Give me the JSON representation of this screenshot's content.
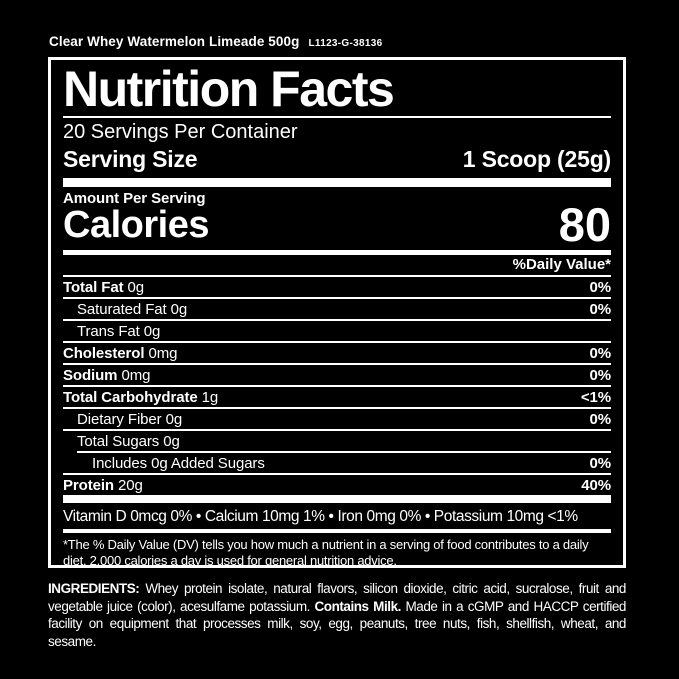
{
  "colors": {
    "background": "#000000",
    "text": "#ffffff"
  },
  "header": {
    "product": "Clear Whey Watermelon Limeade 500g",
    "lot_code": "L1123-G-38136"
  },
  "label": {
    "title": "Nutrition Facts",
    "servings_per_container": "20 Servings Per Container",
    "serving_size_label": "Serving Size",
    "serving_size_value": "1 Scoop (25g)",
    "amount_per_serving": "Amount Per Serving",
    "calories_label": "Calories",
    "calories_value": "80",
    "daily_value_header": "%Daily Value*",
    "rows": [
      {
        "label": "Total Fat",
        "amount": "0g",
        "value": "0%",
        "bold": true,
        "indent": 0
      },
      {
        "label": "Saturated Fat",
        "amount": "0g",
        "value": "0%",
        "bold": false,
        "indent": 1
      },
      {
        "label": "Trans Fat",
        "amount": "0g",
        "value": "",
        "bold": false,
        "indent": 1
      },
      {
        "label": "Cholesterol",
        "amount": "0mg",
        "value": "0%",
        "bold": true,
        "indent": 0
      },
      {
        "label": "Sodium",
        "amount": "0mg",
        "value": "0%",
        "bold": true,
        "indent": 0
      },
      {
        "label": "Total Carbohydrate",
        "amount": "1g",
        "value": "<1%",
        "bold": true,
        "indent": 0
      },
      {
        "label": "Dietary Fiber",
        "amount": "0g",
        "value": "0%",
        "bold": false,
        "indent": 1
      },
      {
        "label": "Total Sugars",
        "amount": "0g",
        "value": "",
        "bold": false,
        "indent": 1
      },
      {
        "label": "Includes 0g Added Sugars",
        "amount": "",
        "value": "0%",
        "bold": false,
        "indent": 2,
        "rule_indented": true
      },
      {
        "label": "Protein",
        "amount": "20g",
        "value": "40%",
        "bold": true,
        "indent": 0
      }
    ],
    "micronutrients": "Vitamin D 0mcg 0% • Calcium 10mg 1% • Iron 0mg 0% • Potassium 10mg <1%",
    "footnote": "*The % Daily Value (DV) tells you how much a nutrient in a serving of food contributes to a daily diet. 2,000 calories a day is used for general nutrition advice."
  },
  "ingredients": {
    "segments": [
      {
        "text": "INGREDIENTS:",
        "bold": true
      },
      {
        "text": " Whey protein isolate, natural flavors, silicon dioxide, citric acid, sucralose, fruit and vegetable juice (color), acesulfame potassium.  ",
        "bold": false
      },
      {
        "text": "Contains Milk.",
        "bold": true
      },
      {
        "text": " Made in a cGMP and HACCP certified facility on equipment that processes milk, soy, egg, peanuts, tree nuts, fish, shellfish, wheat, and sesame.",
        "bold": false
      }
    ]
  }
}
